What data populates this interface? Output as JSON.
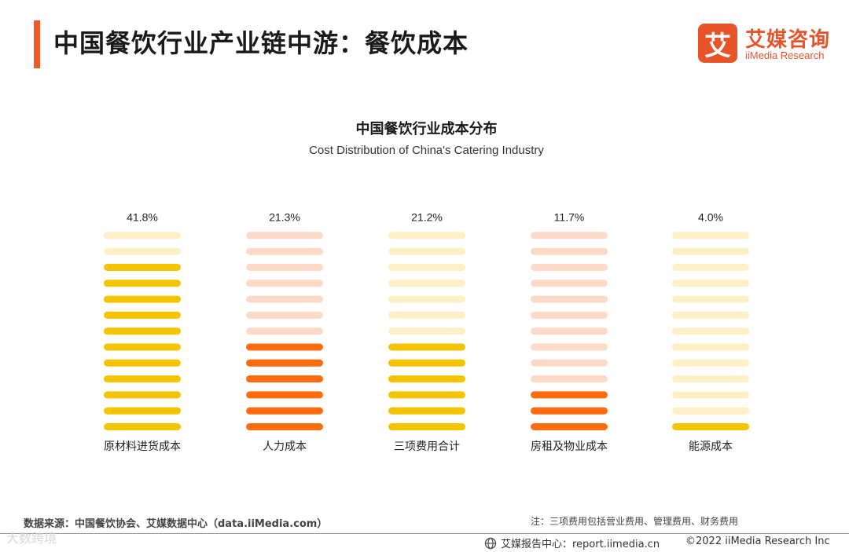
{
  "page": {
    "title": "中国餐饮行业产业链中游：餐饮成本",
    "accent_color": "#f05a28"
  },
  "logo": {
    "mark_char": "艾",
    "name_cn": "艾媒咨询",
    "name_en": "iiMedia Research",
    "color": "#e8542a"
  },
  "chart_data": {
    "type": "bar",
    "title": "中国餐饮行业成本分布",
    "subtitle": "Cost Distribution of China's Catering Industry",
    "categories": [
      "原材料进货成本",
      "人力成本",
      "三项费用合计",
      "房租及物业成本",
      "能源成本"
    ],
    "values": [
      41.8,
      21.3,
      21.2,
      11.7,
      4.0
    ],
    "value_labels": [
      "41.8%",
      "21.3%",
      "21.2%",
      "11.7%",
      "4.0%"
    ],
    "unit": "%",
    "ylim": [
      0,
      50
    ],
    "colors": [
      "#f5c400",
      "#ff6b0f",
      "#f5c400",
      "#ff6b0f",
      "#f5c400"
    ],
    "faded_colors": [
      "#fdf0c6",
      "#fdd9c8",
      "#fdf0c6",
      "#fdd9c8",
      "#fdf0c6"
    ]
  },
  "footer": {
    "source": "数据来源：中国餐饮协会、艾媒数据中心（data.iiMedia.com）",
    "note": "注：三项费用包括营业费用、管理费用、财务费用",
    "report": "艾媒报告中心：report.iimedia.cn",
    "copyright": "©2022  iiMedia Research  Inc",
    "watermark": "大数跨境"
  }
}
